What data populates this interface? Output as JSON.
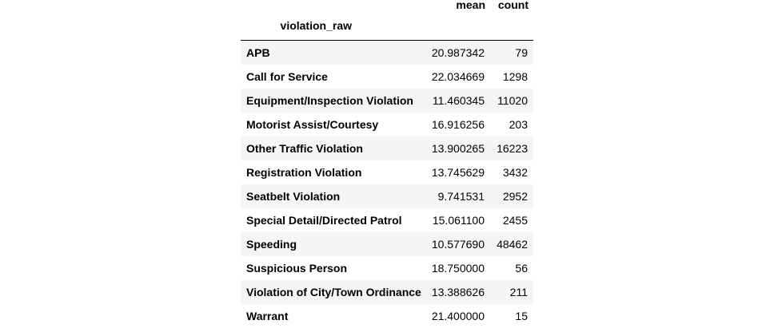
{
  "table": {
    "index_name": "violation_raw",
    "columns": [
      "mean",
      "count"
    ],
    "rows": [
      {
        "label": "APB",
        "mean": "20.987342",
        "count": "79"
      },
      {
        "label": "Call for Service",
        "mean": "22.034669",
        "count": "1298"
      },
      {
        "label": "Equipment/Inspection Violation",
        "mean": "11.460345",
        "count": "11020"
      },
      {
        "label": "Motorist Assist/Courtesy",
        "mean": "16.916256",
        "count": "203"
      },
      {
        "label": "Other Traffic Violation",
        "mean": "13.900265",
        "count": "16223"
      },
      {
        "label": "Registration Violation",
        "mean": "13.745629",
        "count": "3432"
      },
      {
        "label": "Seatbelt Violation",
        "mean": "9.741531",
        "count": "2952"
      },
      {
        "label": "Special Detail/Directed Patrol",
        "mean": "15.061100",
        "count": "2455"
      },
      {
        "label": "Speeding",
        "mean": "10.577690",
        "count": "48462"
      },
      {
        "label": "Suspicious Person",
        "mean": "18.750000",
        "count": "56"
      },
      {
        "label": "Violation of City/Town Ordinance",
        "mean": "13.388626",
        "count": "211"
      },
      {
        "label": "Warrant",
        "mean": "21.400000",
        "count": "15"
      }
    ]
  }
}
